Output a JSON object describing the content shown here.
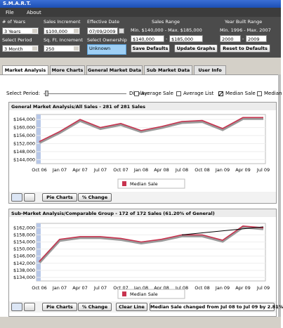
{
  "window": {
    "title": "S.M.A.R.T.",
    "menu": [
      "File",
      "About"
    ]
  },
  "toolbar": {
    "years": {
      "label": "# of Years",
      "value": "3 Years"
    },
    "sales_increment": {
      "label": "Sales Increment",
      "value": "$100,000"
    },
    "effective_date": {
      "label": "Effective Date",
      "value": "07/09/2009"
    },
    "sales_range": {
      "label": "Sales Range",
      "info": "Min. $140,000 - Max. $185,000",
      "min": "$140,000",
      "separator": "-",
      "max": "$185,000"
    },
    "year_built_range": {
      "label": "Year Built Range",
      "info": "Min. 1996 - Max. 2007",
      "min": "2000",
      "separator": "-",
      "max": "2009"
    },
    "period": {
      "label": "Select Period",
      "value": "3 Month"
    },
    "sqft_increment": {
      "label": "Sq. Ft. Increment",
      "value": "250"
    },
    "ownership": {
      "label": "Select Ownership",
      "value": "Unknown"
    },
    "buttons": [
      "Save Defaults",
      "Update Graphs",
      "Reset to Defaults"
    ]
  },
  "tabs": [
    "Market Analysis",
    "More Charts",
    "General Market Data",
    "Sub Market Data",
    "User Info"
  ],
  "controls": {
    "period_label": "Select Period:",
    "display_label": "Display:",
    "checkboxes": [
      {
        "label": "Average Sale",
        "checked": false
      },
      {
        "label": "Average List",
        "checked": false
      },
      {
        "label": "Median Sale",
        "checked": true
      },
      {
        "label": "Median",
        "checked": false
      }
    ]
  },
  "chart_data": [
    {
      "type": "line",
      "title": "General Market Analysis/All Sales - 281 of 281 Sales",
      "categories": [
        "Oct 06",
        "Jan 07",
        "Apr 07",
        "Jul 07",
        "Oct 07",
        "Jan 08",
        "Apr 08",
        "Jul 08",
        "Oct 08",
        "Jan 09",
        "Apr 09",
        "Jul 09"
      ],
      "series": [
        {
          "name": "Median Sale",
          "color": "#c8334f",
          "values": [
            153000,
            158000,
            164000,
            160000,
            162000,
            158500,
            160500,
            163000,
            163500,
            159500,
            165000,
            165000
          ]
        }
      ],
      "ylim": [
        142000,
        166500
      ],
      "yticks": [
        {
          "value": 144000,
          "label": "$144,000"
        },
        {
          "value": 148000,
          "label": "$148,000"
        },
        {
          "value": 152000,
          "label": "$152,000"
        },
        {
          "value": 156000,
          "label": "$156,000"
        },
        {
          "value": 160000,
          "label": "$160,000"
        },
        {
          "value": 164000,
          "label": "$164,000"
        }
      ],
      "grid": true,
      "buttons": [
        "Pie Charts",
        "% Change"
      ]
    },
    {
      "type": "line",
      "title": "Sub-Market Analysis/Comparable Group - 172 of 172 Sales (61.20% of General)",
      "categories": [
        "Oct 06",
        "Jan 07",
        "Apr 07",
        "Jul 07",
        "Oct 07",
        "Jan 08",
        "Apr 08",
        "Jul 08",
        "Oct 08",
        "Jan 09",
        "Apr 09",
        "Jul 09"
      ],
      "series": [
        {
          "name": "Median Sale",
          "color": "#c8334f",
          "values": [
            143000,
            155500,
            157000,
            157000,
            156000,
            154000,
            155500,
            158000,
            158000,
            155000,
            163000,
            162000
          ]
        }
      ],
      "trend_line": {
        "x": [
          "Jul 08",
          "Jul 09"
        ],
        "values": [
          158000,
          162500
        ],
        "color": "#000000"
      },
      "ylim": [
        132000,
        164500
      ],
      "yticks": [
        {
          "value": 134000,
          "label": "$134,000"
        },
        {
          "value": 138000,
          "label": "$138,000"
        },
        {
          "value": 142000,
          "label": "$142,000"
        },
        {
          "value": 146000,
          "label": "$146,000"
        },
        {
          "value": 150000,
          "label": "$150,000"
        },
        {
          "value": 154000,
          "label": "$154,000"
        },
        {
          "value": 158000,
          "label": "$158,000"
        },
        {
          "value": 162000,
          "label": "$162,000"
        }
      ],
      "grid": true,
      "buttons": [
        "Pie Charts",
        "% Change",
        "Clear Line"
      ],
      "message": "Median Sale changed from Jul 08 to Jul 09 by 2.81%"
    }
  ]
}
